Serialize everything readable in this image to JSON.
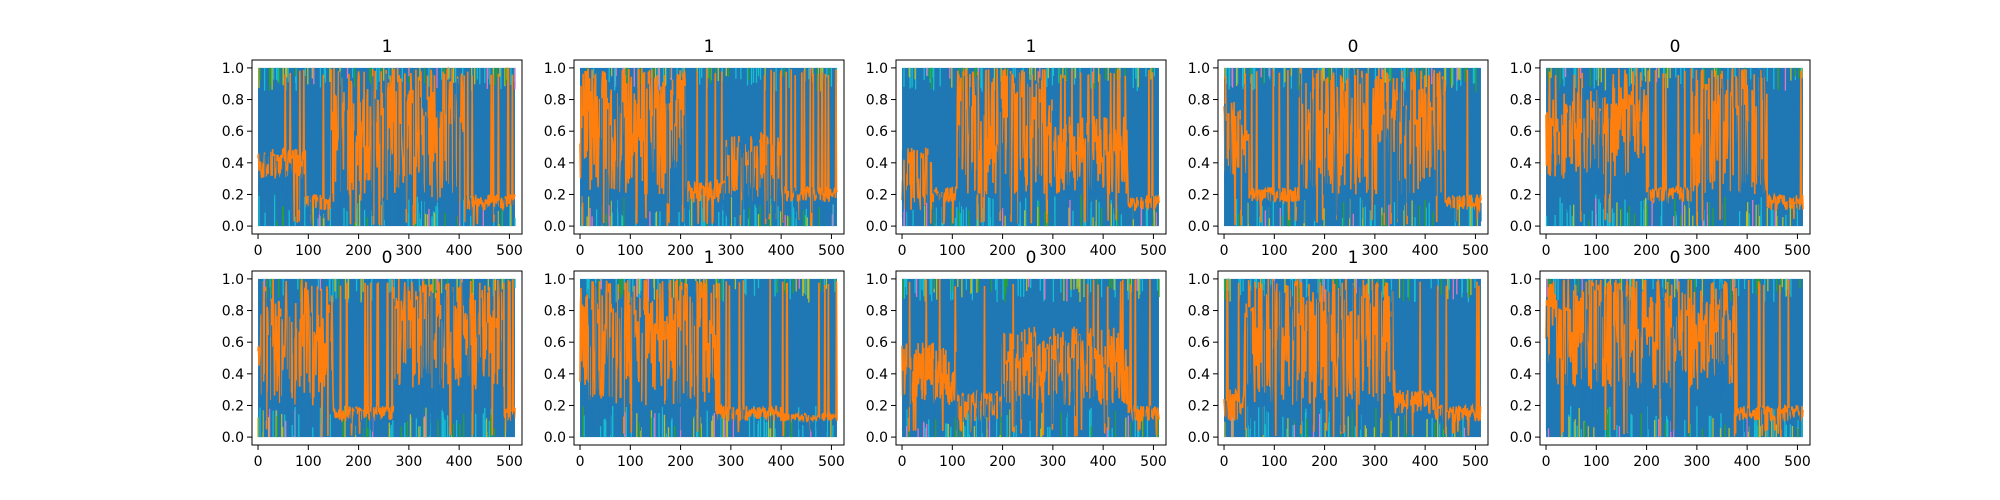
{
  "figure": {
    "background": "#ffffff",
    "series_colors": [
      "#1f77b4",
      "#ff7f0e",
      "#17becf",
      "#bcbd22",
      "#2ca02c",
      "#e377c2"
    ]
  },
  "chart_data": [
    {
      "type": "line",
      "title": "1",
      "xlim": [
        -12,
        525
      ],
      "ylim": [
        -0.05,
        1.05
      ],
      "xticks": [
        0,
        100,
        200,
        300,
        400,
        500
      ],
      "yticks": [
        0.0,
        0.2,
        0.4,
        0.6,
        0.8,
        1.0
      ],
      "regimes": [
        {
          "from": 0,
          "to": 95,
          "orange_low": 0.3,
          "orange_high": 0.5
        },
        {
          "from": 95,
          "to": 145,
          "orange_low": 0.1,
          "orange_high": 0.2
        },
        {
          "from": 145,
          "to": 410,
          "orange_low": 0.15,
          "orange_high": 1.0
        },
        {
          "from": 410,
          "to": 512,
          "orange_low": 0.1,
          "orange_high": 0.2
        }
      ]
    },
    {
      "type": "line",
      "title": "1",
      "xlim": [
        -12,
        525
      ],
      "ylim": [
        -0.05,
        1.05
      ],
      "xticks": [
        0,
        100,
        200,
        300,
        400,
        500
      ],
      "yticks": [
        0.0,
        0.2,
        0.4,
        0.6,
        0.8,
        1.0
      ],
      "regimes": [
        {
          "from": 0,
          "to": 210,
          "orange_low": 0.2,
          "orange_high": 1.0
        },
        {
          "from": 210,
          "to": 290,
          "orange_low": 0.15,
          "orange_high": 0.3
        },
        {
          "from": 290,
          "to": 400,
          "orange_low": 0.15,
          "orange_high": 0.6
        },
        {
          "from": 400,
          "to": 512,
          "orange_low": 0.15,
          "orange_high": 0.25
        }
      ]
    },
    {
      "type": "line",
      "title": "1",
      "xlim": [
        -12,
        525
      ],
      "ylim": [
        -0.05,
        1.05
      ],
      "xticks": [
        0,
        100,
        200,
        300,
        400,
        500
      ],
      "yticks": [
        0.0,
        0.2,
        0.4,
        0.6,
        0.8,
        1.0
      ],
      "regimes": [
        {
          "from": 0,
          "to": 60,
          "orange_low": 0.1,
          "orange_high": 0.5
        },
        {
          "from": 60,
          "to": 110,
          "orange_low": 0.15,
          "orange_high": 0.25
        },
        {
          "from": 110,
          "to": 300,
          "orange_low": 0.2,
          "orange_high": 1.0
        },
        {
          "from": 300,
          "to": 450,
          "orange_low": 0.2,
          "orange_high": 0.7
        },
        {
          "from": 450,
          "to": 512,
          "orange_low": 0.1,
          "orange_high": 0.2
        }
      ]
    },
    {
      "type": "line",
      "title": "0",
      "xlim": [
        -12,
        525
      ],
      "ylim": [
        -0.05,
        1.05
      ],
      "xticks": [
        0,
        100,
        200,
        300,
        400,
        500
      ],
      "yticks": [
        0.0,
        0.2,
        0.4,
        0.6,
        0.8,
        1.0
      ],
      "regimes": [
        {
          "from": 0,
          "to": 50,
          "orange_low": 0.3,
          "orange_high": 0.8
        },
        {
          "from": 50,
          "to": 150,
          "orange_low": 0.15,
          "orange_high": 0.25
        },
        {
          "from": 150,
          "to": 440,
          "orange_low": 0.2,
          "orange_high": 1.0
        },
        {
          "from": 440,
          "to": 512,
          "orange_low": 0.1,
          "orange_high": 0.2
        }
      ]
    },
    {
      "type": "line",
      "title": "0",
      "xlim": [
        -12,
        525
      ],
      "ylim": [
        -0.05,
        1.05
      ],
      "xticks": [
        0,
        100,
        200,
        300,
        400,
        500
      ],
      "yticks": [
        0.0,
        0.2,
        0.4,
        0.6,
        0.8,
        1.0
      ],
      "regimes": [
        {
          "from": 0,
          "to": 200,
          "orange_low": 0.3,
          "orange_high": 0.9
        },
        {
          "from": 200,
          "to": 290,
          "orange_low": 0.15,
          "orange_high": 0.25
        },
        {
          "from": 290,
          "to": 440,
          "orange_low": 0.2,
          "orange_high": 1.0
        },
        {
          "from": 440,
          "to": 512,
          "orange_low": 0.1,
          "orange_high": 0.2
        }
      ]
    },
    {
      "type": "line",
      "title": "0",
      "xlim": [
        -12,
        525
      ],
      "ylim": [
        -0.05,
        1.05
      ],
      "xticks": [
        0,
        100,
        200,
        300,
        400,
        500
      ],
      "yticks": [
        0.0,
        0.2,
        0.4,
        0.6,
        0.8,
        1.0
      ],
      "regimes": [
        {
          "from": 0,
          "to": 150,
          "orange_low": 0.2,
          "orange_high": 1.0
        },
        {
          "from": 150,
          "to": 270,
          "orange_low": 0.1,
          "orange_high": 0.2
        },
        {
          "from": 270,
          "to": 490,
          "orange_low": 0.3,
          "orange_high": 1.0
        },
        {
          "from": 490,
          "to": 512,
          "orange_low": 0.1,
          "orange_high": 0.2
        }
      ]
    },
    {
      "type": "line",
      "title": "1",
      "xlim": [
        -12,
        525
      ],
      "ylim": [
        -0.05,
        1.05
      ],
      "xticks": [
        0,
        100,
        200,
        300,
        400,
        500
      ],
      "yticks": [
        0.0,
        0.2,
        0.4,
        0.6,
        0.8,
        1.0
      ],
      "regimes": [
        {
          "from": 0,
          "to": 270,
          "orange_low": 0.2,
          "orange_high": 1.0
        },
        {
          "from": 270,
          "to": 400,
          "orange_low": 0.1,
          "orange_high": 0.2
        },
        {
          "from": 400,
          "to": 512,
          "orange_low": 0.1,
          "orange_high": 0.15
        }
      ]
    },
    {
      "type": "line",
      "title": "0",
      "xlim": [
        -12,
        525
      ],
      "ylim": [
        -0.05,
        1.05
      ],
      "xticks": [
        0,
        100,
        200,
        300,
        400,
        500
      ],
      "yticks": [
        0.0,
        0.2,
        0.4,
        0.6,
        0.8,
        1.0
      ],
      "regimes": [
        {
          "from": 0,
          "to": 110,
          "orange_low": 0.2,
          "orange_high": 0.6
        },
        {
          "from": 110,
          "to": 200,
          "orange_low": 0.1,
          "orange_high": 0.3
        },
        {
          "from": 200,
          "to": 450,
          "orange_low": 0.2,
          "orange_high": 0.7
        },
        {
          "from": 450,
          "to": 512,
          "orange_low": 0.1,
          "orange_high": 0.2
        }
      ]
    },
    {
      "type": "line",
      "title": "1",
      "xlim": [
        -12,
        525
      ],
      "ylim": [
        -0.05,
        1.05
      ],
      "xticks": [
        0,
        100,
        200,
        300,
        400,
        500
      ],
      "yticks": [
        0.0,
        0.2,
        0.4,
        0.6,
        0.8,
        1.0
      ],
      "regimes": [
        {
          "from": 0,
          "to": 40,
          "orange_low": 0.1,
          "orange_high": 0.3
        },
        {
          "from": 40,
          "to": 340,
          "orange_low": 0.2,
          "orange_high": 1.0
        },
        {
          "from": 340,
          "to": 420,
          "orange_low": 0.15,
          "orange_high": 0.3
        },
        {
          "from": 420,
          "to": 512,
          "orange_low": 0.1,
          "orange_high": 0.2
        }
      ]
    },
    {
      "type": "line",
      "title": "0",
      "xlim": [
        -12,
        525
      ],
      "ylim": [
        -0.05,
        1.05
      ],
      "xticks": [
        0,
        100,
        200,
        300,
        400,
        500
      ],
      "yticks": [
        0.0,
        0.2,
        0.4,
        0.6,
        0.8,
        1.0
      ],
      "regimes": [
        {
          "from": 0,
          "to": 380,
          "orange_low": 0.3,
          "orange_high": 1.0
        },
        {
          "from": 380,
          "to": 512,
          "orange_low": 0.1,
          "orange_high": 0.2
        }
      ]
    }
  ]
}
